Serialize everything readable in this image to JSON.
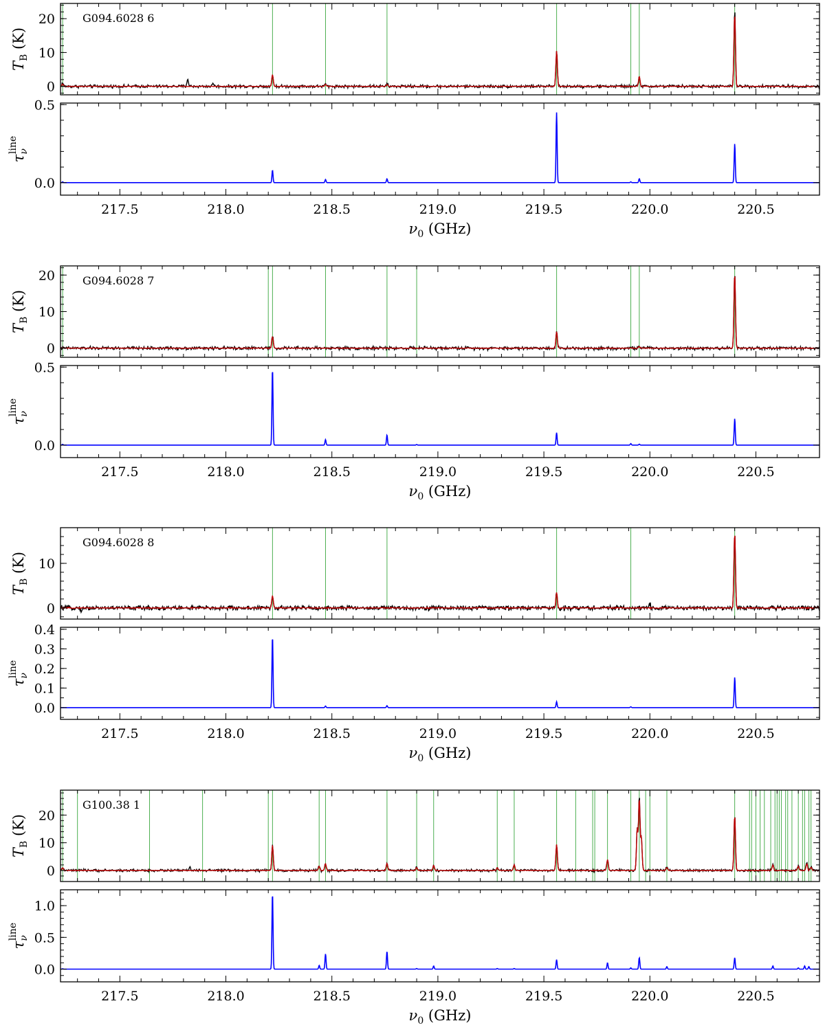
{
  "chart_data": [
    {
      "type": "line",
      "panel_label": "G094.6028 6",
      "xlabel": "ν0 (GHz)",
      "ylabel_top": "TB (K)",
      "ylabel_bottom": "τνline",
      "xlim": [
        217.22,
        220.8
      ],
      "x_ticks": [
        217.5,
        218.0,
        218.5,
        219.0,
        219.5,
        220.0,
        220.5
      ],
      "top": {
        "ylim": [
          -2.5,
          24.5
        ],
        "y_ticks": [
          0,
          10,
          20
        ],
        "noise": 0.3,
        "markers": [
          217.23,
          218.22,
          218.47,
          218.76,
          219.56,
          219.91,
          219.95,
          220.4
        ],
        "spikes": [
          {
            "x": 217.23,
            "obs": 1.0,
            "model": 0.7
          },
          {
            "x": 217.82,
            "obs": 2.2,
            "model": 0
          },
          {
            "x": 217.94,
            "obs": 1.0,
            "model": 0
          },
          {
            "x": 218.22,
            "obs": 3.5,
            "model": 3.5
          },
          {
            "x": 218.47,
            "obs": 0.7,
            "model": 0.6
          },
          {
            "x": 218.76,
            "obs": 0.6,
            "model": 0.5
          },
          {
            "x": 219.56,
            "obs": 10.5,
            "model": 10.5
          },
          {
            "x": 219.95,
            "obs": 3.0,
            "model": 3.0
          },
          {
            "x": 220.4,
            "obs": 22.5,
            "model": 21.5
          }
        ]
      },
      "bottom": {
        "ylim": [
          -0.08,
          0.51
        ],
        "y_ticks": [
          0.0,
          0.5
        ],
        "spikes": [
          {
            "x": 217.23,
            "y": 0.005
          },
          {
            "x": 218.22,
            "y": 0.08
          },
          {
            "x": 218.47,
            "y": 0.02
          },
          {
            "x": 218.76,
            "y": 0.025
          },
          {
            "x": 219.56,
            "y": 0.45
          },
          {
            "x": 219.91,
            "y": 0.005
          },
          {
            "x": 219.95,
            "y": 0.025
          },
          {
            "x": 220.4,
            "y": 0.25
          }
        ]
      }
    },
    {
      "type": "line",
      "panel_label": "G094.6028 7",
      "xlabel": "ν0 (GHz)",
      "ylabel_top": "TB (K)",
      "ylabel_bottom": "τνline",
      "xlim": [
        217.22,
        220.8
      ],
      "x_ticks": [
        217.5,
        218.0,
        218.5,
        219.0,
        219.5,
        220.0,
        220.5
      ],
      "top": {
        "ylim": [
          -2.5,
          22.5
        ],
        "y_ticks": [
          0,
          10,
          20
        ],
        "noise": 0.3,
        "markers": [
          217.23,
          218.2,
          218.22,
          218.47,
          218.76,
          218.9,
          219.56,
          219.91,
          219.95,
          220.4
        ],
        "spikes": [
          {
            "x": 218.22,
            "obs": 3.2,
            "model": 3.2
          },
          {
            "x": 219.56,
            "obs": 4.5,
            "model": 4.5
          },
          {
            "x": 219.95,
            "obs": 0.7,
            "model": 0.5
          },
          {
            "x": 220.4,
            "obs": 20.5,
            "model": 20.5
          }
        ]
      },
      "bottom": {
        "ylim": [
          -0.08,
          0.51
        ],
        "y_ticks": [
          0.0,
          0.5
        ],
        "spikes": [
          {
            "x": 217.23,
            "y": 0.005
          },
          {
            "x": 218.22,
            "y": 0.49
          },
          {
            "x": 218.47,
            "y": 0.035
          },
          {
            "x": 218.76,
            "y": 0.065
          },
          {
            "x": 218.9,
            "y": 0.004
          },
          {
            "x": 219.56,
            "y": 0.08
          },
          {
            "x": 219.91,
            "y": 0.01
          },
          {
            "x": 219.95,
            "y": 0.006
          },
          {
            "x": 220.4,
            "y": 0.17
          }
        ]
      }
    },
    {
      "type": "line",
      "panel_label": "G094.6028 8",
      "xlabel": "ν0 (GHz)",
      "ylabel_top": "TB (K)",
      "ylabel_bottom": "τνline",
      "xlim": [
        217.22,
        220.8
      ],
      "x_ticks": [
        217.5,
        218.0,
        218.5,
        219.0,
        219.5,
        220.0,
        220.5
      ],
      "top": {
        "ylim": [
          -2.5,
          18.0
        ],
        "y_ticks": [
          0,
          10
        ],
        "noise": 0.35,
        "markers": [
          218.22,
          218.47,
          218.76,
          219.56,
          219.91,
          220.4
        ],
        "spikes": [
          {
            "x": 217.32,
            "obs": -0.8,
            "model": 0
          },
          {
            "x": 218.22,
            "obs": 2.8,
            "model": 2.8
          },
          {
            "x": 219.56,
            "obs": 3.5,
            "model": 3.5
          },
          {
            "x": 220.0,
            "obs": 1.0,
            "model": 0
          },
          {
            "x": 220.4,
            "obs": 17.0,
            "model": 17.0
          }
        ]
      },
      "bottom": {
        "ylim": [
          -0.06,
          0.41
        ],
        "y_ticks": [
          0.0,
          0.1,
          0.2,
          0.3,
          0.4
        ],
        "spikes": [
          {
            "x": 218.22,
            "y": 0.365
          },
          {
            "x": 218.47,
            "y": 0.008
          },
          {
            "x": 218.76,
            "y": 0.01
          },
          {
            "x": 219.56,
            "y": 0.03
          },
          {
            "x": 219.91,
            "y": 0.004
          },
          {
            "x": 220.4,
            "y": 0.155
          }
        ]
      }
    },
    {
      "type": "line",
      "panel_label": "G100.38 1",
      "xlabel": "ν0 (GHz)",
      "ylabel_top": "TB (K)",
      "ylabel_bottom": "τνline",
      "xlim": [
        217.22,
        220.8
      ],
      "x_ticks": [
        217.5,
        218.0,
        218.5,
        219.0,
        219.5,
        220.0,
        220.5
      ],
      "top": {
        "ylim": [
          -4.0,
          29.0
        ],
        "y_ticks": [
          0,
          10,
          20
        ],
        "noise": 0.3,
        "markers": [
          217.23,
          217.3,
          217.64,
          217.89,
          218.2,
          218.22,
          218.44,
          218.47,
          218.76,
          218.9,
          218.98,
          219.28,
          219.36,
          219.56,
          219.65,
          219.73,
          219.74,
          219.8,
          219.91,
          219.95,
          219.98,
          220.0,
          220.08,
          220.4,
          220.47,
          220.48,
          220.5,
          220.52,
          220.54,
          220.57,
          220.59,
          220.6,
          220.61,
          220.62,
          220.64,
          220.65,
          220.67,
          220.7,
          220.72,
          220.73,
          220.75,
          220.76
        ],
        "spikes": [
          {
            "x": 217.23,
            "obs": 1.2,
            "model": 1.0
          },
          {
            "x": 217.83,
            "obs": 1.2,
            "model": 0
          },
          {
            "x": 218.22,
            "obs": 9.0,
            "model": 9.0
          },
          {
            "x": 218.44,
            "obs": 1.5,
            "model": 1.5
          },
          {
            "x": 218.47,
            "obs": 2.5,
            "model": 2.5
          },
          {
            "x": 218.76,
            "obs": 2.5,
            "model": 2.5
          },
          {
            "x": 218.9,
            "obs": 1.0,
            "model": 1.0
          },
          {
            "x": 218.98,
            "obs": 1.8,
            "model": 1.8
          },
          {
            "x": 219.28,
            "obs": 1.0,
            "model": 1.0
          },
          {
            "x": 219.36,
            "obs": 2.0,
            "model": 2.0
          },
          {
            "x": 219.56,
            "obs": 9.5,
            "model": 9.5
          },
          {
            "x": 219.8,
            "obs": 4.0,
            "model": 4.0
          },
          {
            "x": 219.94,
            "obs": 15.0,
            "model": 15.0
          },
          {
            "x": 219.95,
            "obs": 27.0,
            "model": 26.0
          },
          {
            "x": 219.96,
            "obs": 12.0,
            "model": 12.0
          },
          {
            "x": 220.08,
            "obs": 1.0,
            "model": 1.0
          },
          {
            "x": 220.4,
            "obs": 20.0,
            "model": 20.0
          },
          {
            "x": 220.58,
            "obs": 2.5,
            "model": 2.0
          },
          {
            "x": 220.7,
            "obs": 1.8,
            "model": 1.5
          },
          {
            "x": 220.74,
            "obs": 3.0,
            "model": 2.5
          },
          {
            "x": 220.76,
            "obs": 1.5,
            "model": 1.2
          }
        ]
      },
      "bottom": {
        "ylim": [
          -0.2,
          1.25
        ],
        "y_ticks": [
          0.0,
          0.5,
          1.0
        ],
        "spikes": [
          {
            "x": 217.23,
            "y": 0.005
          },
          {
            "x": 218.22,
            "y": 1.2
          },
          {
            "x": 218.44,
            "y": 0.06
          },
          {
            "x": 218.47,
            "y": 0.24
          },
          {
            "x": 218.76,
            "y": 0.28
          },
          {
            "x": 218.9,
            "y": 0.01
          },
          {
            "x": 218.98,
            "y": 0.05
          },
          {
            "x": 219.28,
            "y": 0.01
          },
          {
            "x": 219.36,
            "y": 0.01
          },
          {
            "x": 219.56,
            "y": 0.15
          },
          {
            "x": 219.8,
            "y": 0.1
          },
          {
            "x": 219.91,
            "y": 0.02
          },
          {
            "x": 219.95,
            "y": 0.18
          },
          {
            "x": 220.08,
            "y": 0.04
          },
          {
            "x": 220.4,
            "y": 0.18
          },
          {
            "x": 220.58,
            "y": 0.05
          },
          {
            "x": 220.7,
            "y": 0.02
          },
          {
            "x": 220.73,
            "y": 0.05
          },
          {
            "x": 220.75,
            "y": 0.04
          }
        ]
      }
    }
  ],
  "colors": {
    "observed": "#000000",
    "model": "#c00000",
    "tau": "#0000ff",
    "marker": "#4caf50"
  }
}
